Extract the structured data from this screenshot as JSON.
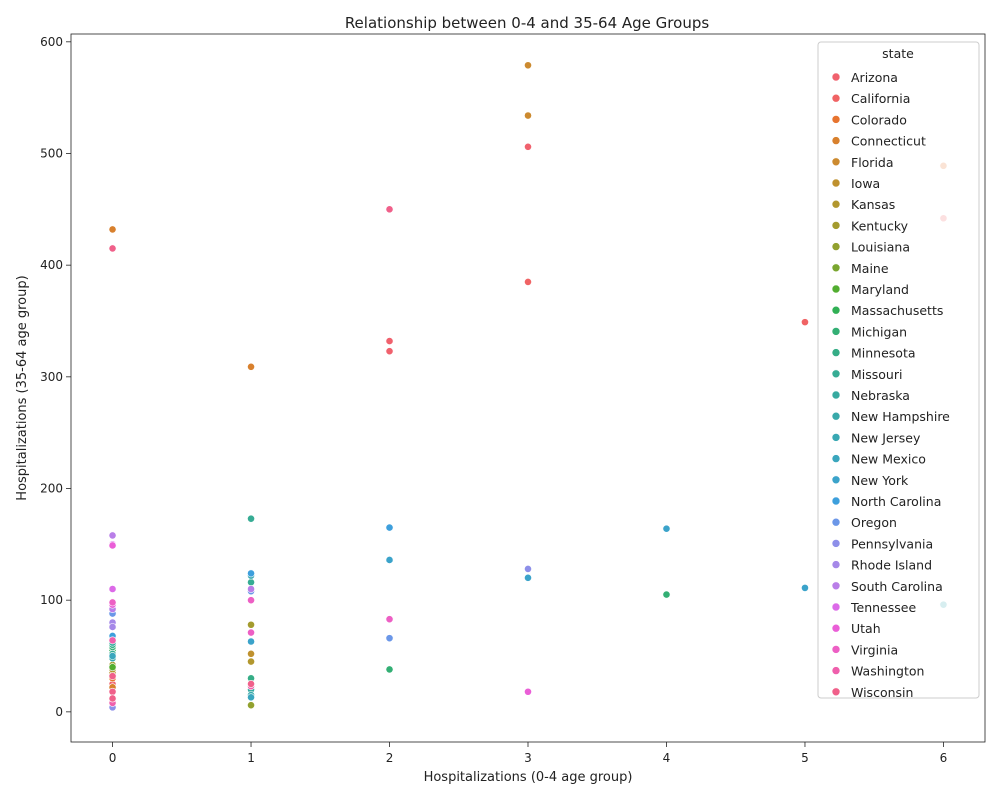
{
  "chart_data": {
    "type": "scatter",
    "title": "Relationship between 0-4 and 35-64 Age Groups",
    "xlabel": "Hospitalizations (0-4 age group)",
    "ylabel": "Hospitalizations (35-64 age group)",
    "xlim": [
      -0.3,
      6.3
    ],
    "ylim": [
      -27,
      607
    ],
    "x_ticks": [
      "0",
      "1",
      "2",
      "3",
      "4",
      "5",
      "6"
    ],
    "y_ticks": [
      "0",
      "100",
      "200",
      "300",
      "400",
      "500",
      "600"
    ],
    "grid": false,
    "legend": {
      "title": "state",
      "placement": "upper-right"
    },
    "series": [
      {
        "name": "Arizona",
        "color": "#f0616d",
        "points": [
          [
            3,
            506
          ],
          [
            2,
            332
          ],
          [
            2,
            323
          ],
          [
            0,
            25
          ]
        ]
      },
      {
        "name": "California",
        "color": "#f06364",
        "points": [
          [
            6,
            442
          ],
          [
            5,
            349
          ],
          [
            3,
            385
          ]
        ]
      },
      {
        "name": "Colorado",
        "color": "#e7742f",
        "points": [
          [
            6,
            489
          ],
          [
            0,
            30
          ]
        ]
      },
      {
        "name": "Connecticut",
        "color": "#d8802d",
        "points": [
          [
            0,
            432
          ],
          [
            1,
            309
          ],
          [
            0,
            22
          ]
        ]
      },
      {
        "name": "Florida",
        "color": "#cc8a2f",
        "points": [
          [
            3,
            579
          ],
          [
            3,
            534
          ]
        ]
      },
      {
        "name": "Iowa",
        "color": "#bf912e",
        "points": [
          [
            1,
            52
          ],
          [
            0,
            35
          ]
        ]
      },
      {
        "name": "Kansas",
        "color": "#b2972e",
        "points": [
          [
            1,
            45
          ],
          [
            0,
            38
          ]
        ]
      },
      {
        "name": "Kentucky",
        "color": "#a49b2e",
        "points": [
          [
            1,
            78
          ],
          [
            0,
            42
          ]
        ]
      },
      {
        "name": "Louisiana",
        "color": "#92a12f",
        "points": [
          [
            1,
            6
          ],
          [
            0,
            48
          ]
        ]
      },
      {
        "name": "Maine",
        "color": "#7aa62f",
        "points": [
          [
            0,
            50
          ]
        ]
      },
      {
        "name": "Maryland",
        "color": "#52ad30",
        "points": [
          [
            0,
            40
          ]
        ]
      },
      {
        "name": "Massachusetts",
        "color": "#31b055",
        "points": [
          [
            0,
            55
          ]
        ]
      },
      {
        "name": "Michigan",
        "color": "#33af74",
        "points": [
          [
            4,
            105
          ],
          [
            2,
            38
          ],
          [
            0,
            58
          ]
        ]
      },
      {
        "name": "Minnesota",
        "color": "#35ad86",
        "points": [
          [
            1,
            30
          ],
          [
            0,
            60
          ]
        ]
      },
      {
        "name": "Missouri",
        "color": "#36ac94",
        "points": [
          [
            1,
            173
          ],
          [
            1,
            116
          ],
          [
            0,
            52
          ]
        ]
      },
      {
        "name": "Nebraska",
        "color": "#37aaa0",
        "points": [
          [
            1,
            20
          ],
          [
            0,
            62
          ]
        ]
      },
      {
        "name": "New Hampshire",
        "color": "#38a9aa",
        "points": [
          [
            1,
            15
          ],
          [
            0,
            48
          ]
        ]
      },
      {
        "name": "New Jersey",
        "color": "#39a8b3",
        "points": [
          [
            6,
            96
          ],
          [
            1,
            122
          ],
          [
            0,
            65
          ]
        ]
      },
      {
        "name": "New Mexico",
        "color": "#3aa6bd",
        "points": [
          [
            1,
            13
          ],
          [
            0,
            50
          ]
        ]
      },
      {
        "name": "New York",
        "color": "#3ba3ca",
        "points": [
          [
            4,
            164
          ],
          [
            5,
            111
          ],
          [
            3,
            120
          ],
          [
            2,
            136
          ],
          [
            1,
            63
          ]
        ]
      },
      {
        "name": "North Carolina",
        "color": "#3d9fdc",
        "points": [
          [
            2,
            165
          ],
          [
            1,
            124
          ],
          [
            0,
            68
          ]
        ]
      },
      {
        "name": "Oregon",
        "color": "#6b97e8",
        "points": [
          [
            2,
            66
          ],
          [
            1,
            108
          ],
          [
            0,
            88
          ]
        ]
      },
      {
        "name": "Pennsylvania",
        "color": "#8d8fe9",
        "points": [
          [
            3,
            128
          ],
          [
            0,
            110
          ],
          [
            0,
            4
          ]
        ]
      },
      {
        "name": "Rhode Island",
        "color": "#a588e8",
        "points": [
          [
            0,
            80
          ],
          [
            0,
            76
          ]
        ]
      },
      {
        "name": "South Carolina",
        "color": "#b97ee8",
        "points": [
          [
            0,
            158
          ],
          [
            0,
            92
          ],
          [
            1,
            110
          ]
        ]
      },
      {
        "name": "Tennessee",
        "color": "#dc6ae8",
        "points": [
          [
            0,
            150
          ],
          [
            0,
            110
          ]
        ]
      },
      {
        "name": "Utah",
        "color": "#ea5ed7",
        "points": [
          [
            3,
            18
          ],
          [
            0,
            149
          ],
          [
            0,
            96
          ]
        ]
      },
      {
        "name": "Virginia",
        "color": "#ed5fc4",
        "points": [
          [
            2,
            83
          ],
          [
            1,
            100
          ],
          [
            1,
            71
          ],
          [
            0,
            98
          ]
        ]
      },
      {
        "name": "Washington",
        "color": "#ef5fac",
        "points": [
          [
            0,
            64
          ],
          [
            1,
            23
          ],
          [
            0,
            8
          ]
        ]
      },
      {
        "name": "Wisconsin",
        "color": "#f0608a",
        "points": [
          [
            2,
            450
          ],
          [
            0,
            415
          ],
          [
            0,
            32
          ],
          [
            0,
            18
          ],
          [
            0,
            12
          ],
          [
            1,
            25
          ]
        ]
      }
    ]
  }
}
